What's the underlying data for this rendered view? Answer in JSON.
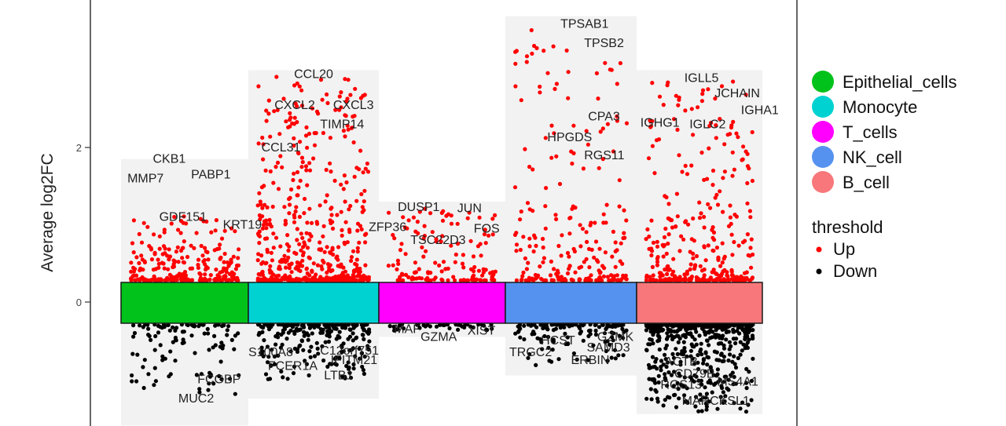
{
  "chart_data": {
    "type": "scatter",
    "title": "",
    "xlabel": "",
    "ylabel": "Average log2FC",
    "yticks": [
      0,
      2
    ],
    "ylim": [
      -1.6,
      3.9
    ],
    "grid": false,
    "legend_position": "right",
    "clusters": [
      {
        "name": "Epithelial_cells",
        "color": "#00c21a",
        "band_top": 1.85,
        "band_bottom": -1.6,
        "up_max": 1.1,
        "down_min": -1.2,
        "up_n": 260,
        "down_n": 110
      },
      {
        "name": "Monocyte",
        "color": "#00d2d2",
        "band_top": 3.0,
        "band_bottom": -1.25,
        "up_max": 2.9,
        "down_min": -1.0,
        "up_n": 520,
        "down_n": 260
      },
      {
        "name": "T_cells",
        "color": "#ff00ff",
        "band_top": 1.3,
        "band_bottom": -0.45,
        "up_max": 1.2,
        "down_min": -0.35,
        "up_n": 140,
        "down_n": 40
      },
      {
        "name": "NK_cell",
        "color": "#5592f0",
        "band_top": 3.7,
        "band_bottom": -0.95,
        "up_max": 3.5,
        "down_min": -0.8,
        "up_n": 230,
        "down_n": 140
      },
      {
        "name": "B_cell",
        "color": "#f7777a",
        "band_top": 3.0,
        "band_bottom": -1.45,
        "up_max": 2.85,
        "down_min": -1.4,
        "up_n": 330,
        "down_n": 520
      }
    ],
    "gene_labels": [
      {
        "text": "CKB1",
        "cluster": "Epithelial_cells",
        "y": 1.8,
        "x": 0.25
      },
      {
        "text": "MMP7",
        "cluster": "Epithelial_cells",
        "y": 1.55,
        "x": 0.05
      },
      {
        "text": "PABP1",
        "cluster": "Epithelial_cells",
        "y": 1.6,
        "x": 0.55
      },
      {
        "text": "GDF151",
        "cluster": "Epithelial_cells",
        "y": 1.05,
        "x": 0.3
      },
      {
        "text": "KRT19",
        "cluster": "Epithelial_cells",
        "y": 0.95,
        "x": 0.8
      },
      {
        "text": "FCGBP",
        "cluster": "Epithelial_cells",
        "y": -1.05,
        "x": 0.6
      },
      {
        "text": "MUC2",
        "cluster": "Epithelial_cells",
        "y": -1.3,
        "x": 0.45
      },
      {
        "text": "CCL20",
        "cluster": "Monocyte",
        "y": 2.9,
        "x": 0.35
      },
      {
        "text": "CXCL2",
        "cluster": "Monocyte",
        "y": 2.5,
        "x": 0.2
      },
      {
        "text": "CXCL3",
        "cluster": "Monocyte",
        "y": 2.5,
        "x": 0.65
      },
      {
        "text": "TIMP14",
        "cluster": "Monocyte",
        "y": 2.25,
        "x": 0.55
      },
      {
        "text": "CCL31",
        "cluster": "Monocyte",
        "y": 1.95,
        "x": 0.1
      },
      {
        "text": "S100A8",
        "cluster": "Monocyte",
        "y": -0.7,
        "x": 0.0
      },
      {
        "text": "FCER1A",
        "cluster": "Monocyte",
        "y": -0.88,
        "x": 0.15
      },
      {
        "text": "C12orf751",
        "cluster": "Monocyte",
        "y": -0.68,
        "x": 0.55
      },
      {
        "text": "IFITM21",
        "cluster": "Monocyte",
        "y": -0.8,
        "x": 0.63
      },
      {
        "text": "LTB1",
        "cluster": "Monocyte",
        "y": -1.0,
        "x": 0.58
      },
      {
        "text": "DUSP1",
        "cluster": "T_cells",
        "y": 1.18,
        "x": 0.15
      },
      {
        "text": "JUN",
        "cluster": "T_cells",
        "y": 1.16,
        "x": 0.62
      },
      {
        "text": "ZFP36",
        "cluster": "T_cells",
        "y": 0.92,
        "x": -0.08
      },
      {
        "text": "FOS",
        "cluster": "T_cells",
        "y": 0.9,
        "x": 0.75
      },
      {
        "text": "TSC22D3",
        "cluster": "T_cells",
        "y": 0.75,
        "x": 0.25
      },
      {
        "text": "MAF",
        "cluster": "T_cells",
        "y": -0.4,
        "x": 0.12
      },
      {
        "text": "GZMA",
        "cluster": "T_cells",
        "y": -0.5,
        "x": 0.33
      },
      {
        "text": "XIST",
        "cluster": "T_cells",
        "y": -0.42,
        "x": 0.7
      },
      {
        "text": "TPSAB1",
        "cluster": "NK_cell",
        "y": 3.55,
        "x": 0.42
      },
      {
        "text": "TPSB2",
        "cluster": "NK_cell",
        "y": 3.3,
        "x": 0.6
      },
      {
        "text": "CPA3",
        "cluster": "NK_cell",
        "y": 2.35,
        "x": 0.63
      },
      {
        "text": "HPGDS",
        "cluster": "NK_cell",
        "y": 2.08,
        "x": 0.32
      },
      {
        "text": "RGS11",
        "cluster": "NK_cell",
        "y": 1.85,
        "x": 0.6
      },
      {
        "text": "HCST",
        "cluster": "NK_cell",
        "y": -0.55,
        "x": 0.27
      },
      {
        "text": "TRGC2",
        "cluster": "NK_cell",
        "y": -0.7,
        "x": 0.03
      },
      {
        "text": "GZMK",
        "cluster": "NK_cell",
        "y": -0.5,
        "x": 0.7
      },
      {
        "text": "SAMD3",
        "cluster": "NK_cell",
        "y": -0.64,
        "x": 0.62
      },
      {
        "text": "ERBIN",
        "cluster": "NK_cell",
        "y": -0.8,
        "x": 0.5
      },
      {
        "text": "IGLL5",
        "cluster": "B_cell",
        "y": 2.85,
        "x": 0.38
      },
      {
        "text": "JCHAIN",
        "cluster": "B_cell",
        "y": 2.65,
        "x": 0.62
      },
      {
        "text": "IGHA1",
        "cluster": "B_cell",
        "y": 2.43,
        "x": 0.83
      },
      {
        "text": "IGHG1",
        "cluster": "B_cell",
        "y": 2.27,
        "x": 0.03
      },
      {
        "text": "IGLC2",
        "cluster": "B_cell",
        "y": 2.25,
        "x": 0.42
      },
      {
        "text": "ACTB",
        "cluster": "B_cell",
        "y": -0.82,
        "x": 0.22
      },
      {
        "text": "CD79B",
        "cluster": "B_cell",
        "y": -0.98,
        "x": 0.3
      },
      {
        "text": "RGS13",
        "cluster": "B_cell",
        "y": -1.12,
        "x": 0.19
      },
      {
        "text": "MS4A1",
        "cluster": "B_cell",
        "y": -1.08,
        "x": 0.64
      },
      {
        "text": "MARCKSL1",
        "cluster": "B_cell",
        "y": -1.33,
        "x": 0.36
      }
    ],
    "threshold_legend": {
      "title": "threshold",
      "items": [
        {
          "label": "Up",
          "color": "#ff0000"
        },
        {
          "label": "Down",
          "color": "#000000"
        }
      ]
    }
  }
}
